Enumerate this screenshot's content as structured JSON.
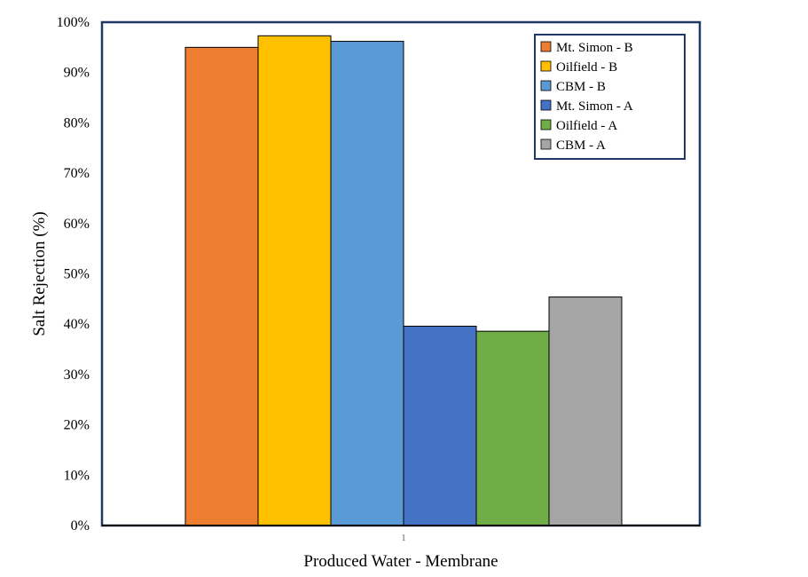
{
  "chart_data": {
    "type": "bar",
    "categories": [
      "1"
    ],
    "series": [
      {
        "name": "Mt. Simon - B",
        "values": [
          95
        ],
        "color": "#ED7D31"
      },
      {
        "name": "Oilfield - B",
        "values": [
          97.3
        ],
        "color": "#FFC000"
      },
      {
        "name": "CBM - B",
        "values": [
          96.2
        ],
        "color": "#5B9BD5"
      },
      {
        "name": "Mt. Simon - A",
        "values": [
          39.6
        ],
        "color": "#4472C4"
      },
      {
        "name": "Oilfield - A",
        "values": [
          38.6
        ],
        "color": "#70AD47"
      },
      {
        "name": "CBM - A",
        "values": [
          45.4
        ],
        "color": "#A5A5A5"
      }
    ],
    "xlabel": "Produced Water - Membrane",
    "ylabel": "Salt Rejection (%)",
    "ylim": [
      0,
      100
    ],
    "yticks": [
      "0%",
      "10%",
      "20%",
      "30%",
      "40%",
      "50%",
      "60%",
      "70%",
      "80%",
      "90%",
      "100%"
    ],
    "grid": false,
    "legend": "top-right",
    "frame_color": "#1F3864"
  }
}
